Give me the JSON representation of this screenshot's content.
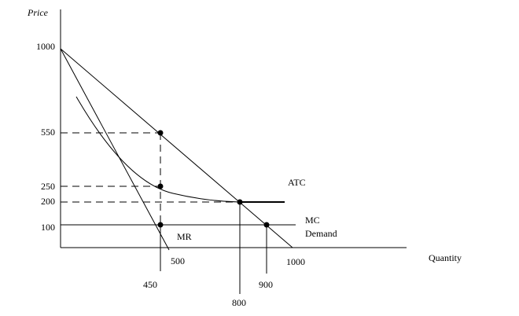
{
  "axes": {
    "y_label": "Price",
    "x_label": "Quantity"
  },
  "price_labels": [
    "1000",
    "550",
    "250",
    "200",
    "100"
  ],
  "quantity_labels": [
    "500",
    "1000",
    "450",
    "900",
    "800"
  ],
  "curve_labels": {
    "atc": "ATC",
    "mc": "MC",
    "demand": "Demand",
    "mr": "MR"
  }
}
